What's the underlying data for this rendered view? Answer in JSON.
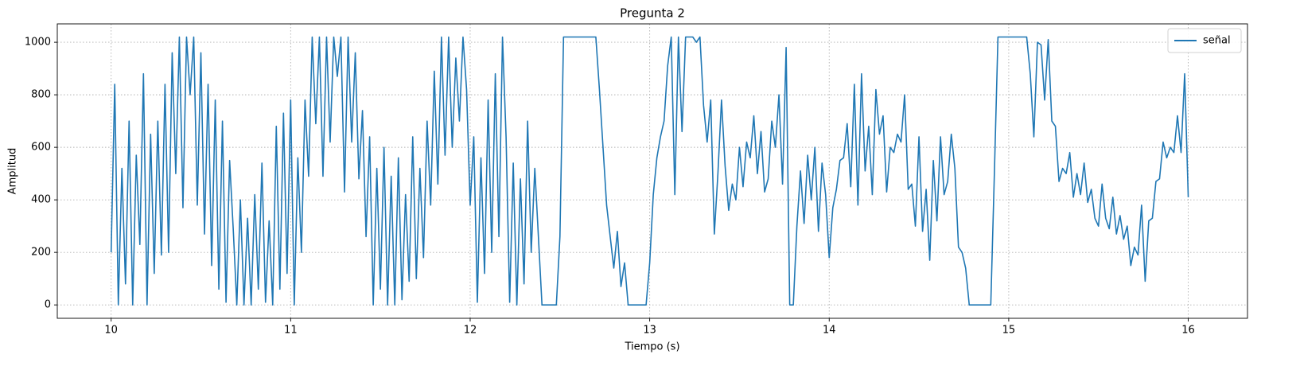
{
  "chart_data": {
    "type": "line",
    "title": "Pregunta 2",
    "xlabel": "Tiempo (s)",
    "ylabel": "Amplitud",
    "x": [
      10,
      10.02,
      10.04,
      10.06,
      10.08,
      10.1,
      10.12,
      10.14,
      10.16,
      10.18,
      10.2,
      10.22,
      10.24,
      10.26,
      10.28,
      10.3,
      10.32,
      10.34,
      10.36,
      10.38,
      10.4,
      10.42,
      10.44,
      10.46,
      10.48,
      10.5,
      10.52,
      10.54,
      10.56,
      10.58,
      10.6,
      10.62,
      10.64,
      10.66,
      10.68,
      10.7,
      10.72,
      10.74,
      10.76,
      10.78,
      10.8,
      10.82,
      10.84,
      10.86,
      10.88,
      10.9,
      10.92,
      10.94,
      10.96,
      10.98,
      11,
      11.02,
      11.04,
      11.06,
      11.08,
      11.1,
      11.12,
      11.14,
      11.16,
      11.18,
      11.2,
      11.22,
      11.24,
      11.26,
      11.28,
      11.3,
      11.32,
      11.34,
      11.36,
      11.38,
      11.4,
      11.42,
      11.44,
      11.46,
      11.48,
      11.5,
      11.52,
      11.54,
      11.56,
      11.58,
      11.6,
      11.62,
      11.64,
      11.66,
      11.68,
      11.7,
      11.72,
      11.74,
      11.76,
      11.78,
      11.8,
      11.82,
      11.84,
      11.86,
      11.88,
      11.9,
      11.92,
      11.94,
      11.96,
      11.98,
      12,
      12.02,
      12.04,
      12.06,
      12.08,
      12.1,
      12.12,
      12.14,
      12.16,
      12.18,
      12.2,
      12.22,
      12.24,
      12.26,
      12.28,
      12.3,
      12.32,
      12.34,
      12.36,
      12.38,
      12.4,
      12.42,
      12.44,
      12.46,
      12.48,
      12.5,
      12.52,
      12.54,
      12.56,
      12.58,
      12.6,
      12.62,
      12.64,
      12.66,
      12.68,
      12.7,
      12.72,
      12.74,
      12.76,
      12.78,
      12.8,
      12.82,
      12.84,
      12.86,
      12.88,
      12.9,
      12.92,
      12.94,
      12.96,
      12.98,
      13,
      13.02,
      13.04,
      13.06,
      13.08,
      13.1,
      13.12,
      13.14,
      13.16,
      13.18,
      13.2,
      13.22,
      13.24,
      13.26,
      13.28,
      13.3,
      13.32,
      13.34,
      13.36,
      13.38,
      13.4,
      13.42,
      13.44,
      13.46,
      13.48,
      13.5,
      13.52,
      13.54,
      13.56,
      13.58,
      13.6,
      13.62,
      13.64,
      13.66,
      13.68,
      13.7,
      13.72,
      13.74,
      13.76,
      13.78,
      13.8,
      13.82,
      13.84,
      13.86,
      13.88,
      13.9,
      13.92,
      13.94,
      13.96,
      13.98,
      14,
      14.02,
      14.04,
      14.06,
      14.08,
      14.1,
      14.12,
      14.14,
      14.16,
      14.18,
      14.2,
      14.22,
      14.24,
      14.26,
      14.28,
      14.3,
      14.32,
      14.34,
      14.36,
      14.38,
      14.4,
      14.42,
      14.44,
      14.46,
      14.48,
      14.5,
      14.52,
      14.54,
      14.56,
      14.58,
      14.6,
      14.62,
      14.64,
      14.66,
      14.68,
      14.7,
      14.72,
      14.74,
      14.76,
      14.78,
      14.8,
      14.82,
      14.84,
      14.86,
      14.88,
      14.9,
      14.92,
      14.94,
      14.96,
      14.98,
      15,
      15.02,
      15.04,
      15.06,
      15.08,
      15.1,
      15.12,
      15.14,
      15.16,
      15.18,
      15.2,
      15.22,
      15.24,
      15.26,
      15.28,
      15.3,
      15.32,
      15.34,
      15.36,
      15.38,
      15.4,
      15.42,
      15.44,
      15.46,
      15.48,
      15.5,
      15.52,
      15.54,
      15.56,
      15.58,
      15.6,
      15.62,
      15.64,
      15.66,
      15.68,
      15.7,
      15.72,
      15.74,
      15.76,
      15.78,
      15.8,
      15.82,
      15.84,
      15.86,
      15.88,
      15.9,
      15.92,
      15.94,
      15.96,
      15.98,
      16
    ],
    "series": [
      {
        "name": "señal",
        "color": "#1f77b4",
        "values": [
          200,
          840,
          0,
          520,
          80,
          700,
          0,
          570,
          230,
          880,
          0,
          650,
          120,
          700,
          190,
          840,
          200,
          960,
          500,
          1020,
          370,
          1020,
          800,
          1020,
          380,
          960,
          270,
          840,
          150,
          780,
          60,
          700,
          10,
          550,
          290,
          0,
          400,
          0,
          330,
          0,
          420,
          60,
          540,
          10,
          320,
          0,
          680,
          60,
          730,
          120,
          780,
          0,
          560,
          200,
          780,
          490,
          1020,
          690,
          1020,
          490,
          1020,
          620,
          1020,
          870,
          1020,
          430,
          1020,
          620,
          960,
          480,
          740,
          260,
          640,
          0,
          520,
          60,
          600,
          0,
          490,
          0,
          560,
          20,
          420,
          90,
          640,
          100,
          520,
          180,
          700,
          380,
          890,
          460,
          1020,
          570,
          1020,
          600,
          940,
          700,
          1020,
          820,
          380,
          640,
          10,
          560,
          120,
          780,
          200,
          880,
          260,
          1020,
          640,
          10,
          540,
          0,
          480,
          80,
          700,
          200,
          520,
          260,
          0,
          0,
          0,
          0,
          0,
          260,
          1020,
          1020,
          1020,
          1020,
          1020,
          1020,
          1020,
          1020,
          1020,
          1020,
          820,
          600,
          380,
          260,
          140,
          280,
          70,
          160,
          0,
          0,
          0,
          0,
          0,
          0,
          160,
          420,
          560,
          640,
          700,
          910,
          1020,
          420,
          1020,
          660,
          1020,
          1020,
          1020,
          1000,
          1020,
          760,
          620,
          780,
          270,
          500,
          780,
          530,
          360,
          460,
          400,
          600,
          450,
          620,
          560,
          720,
          500,
          660,
          430,
          480,
          700,
          600,
          800,
          460,
          980,
          0,
          0,
          300,
          510,
          310,
          570,
          400,
          600,
          280,
          540,
          420,
          180,
          370,
          440,
          550,
          560,
          690,
          450,
          840,
          380,
          880,
          510,
          680,
          420,
          820,
          650,
          720,
          430,
          600,
          580,
          650,
          620,
          800,
          440,
          460,
          300,
          640,
          280,
          440,
          170,
          550,
          320,
          640,
          420,
          470,
          650,
          520,
          220,
          200,
          140,
          0,
          0,
          0,
          0,
          0,
          0,
          0,
          500,
          1020,
          1020,
          1020,
          1020,
          1020,
          1020,
          1020,
          1020,
          1020,
          880,
          640,
          1000,
          990,
          780,
          1010,
          700,
          680,
          470,
          520,
          500,
          580,
          410,
          500,
          420,
          540,
          390,
          440,
          330,
          300,
          460,
          330,
          290,
          410,
          270,
          340,
          250,
          300,
          150,
          220,
          190,
          380,
          90,
          320,
          330,
          470,
          480,
          620,
          560,
          600,
          580,
          720,
          580,
          880,
          410
        ]
      }
    ],
    "xlim": [
      9.7,
      16.33
    ],
    "ylim": [
      -51,
      1070
    ],
    "xticks": [
      10,
      11,
      12,
      13,
      14,
      15,
      16
    ],
    "yticks": [
      0,
      200,
      400,
      600,
      800,
      1000
    ],
    "grid": true,
    "legend": "upper right"
  }
}
